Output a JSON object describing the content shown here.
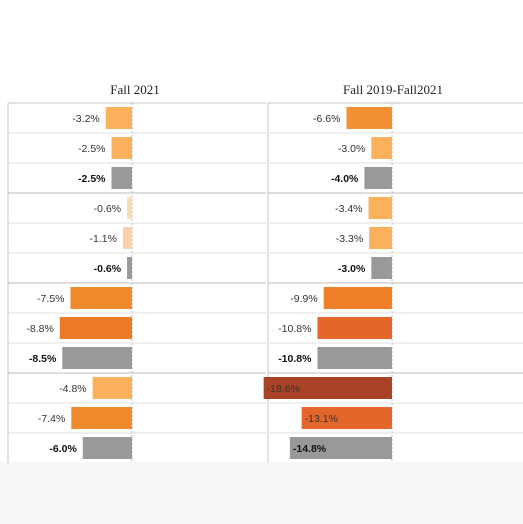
{
  "chart_data": [
    {
      "type": "bar",
      "orientation": "horizontal",
      "title": "Fall 2021",
      "values": [
        -3.2,
        -2.5,
        -2.5,
        -0.6,
        -1.1,
        -0.6,
        -7.5,
        -8.8,
        -8.5,
        -4.8,
        -7.4,
        -6.0
      ],
      "labels": [
        "-3.2%",
        "-2.5%",
        "-2.5%",
        "-0.6%",
        "-1.1%",
        "-0.6%",
        "-7.5%",
        "-8.8%",
        "-8.5%",
        "-4.8%",
        "-7.4%",
        "-6.0%"
      ],
      "total_row": [
        false,
        false,
        true,
        false,
        false,
        true,
        false,
        false,
        true,
        false,
        false,
        true
      ],
      "colors": [
        "#fbb15b",
        "#fbb15b",
        "#999999",
        "#f8dcb8",
        "#f9d1a8",
        "#999999",
        "#f08a2c",
        "#ee7a27",
        "#999999",
        "#fbb15b",
        "#f08a2c",
        "#999999"
      ],
      "groups": 4
    },
    {
      "type": "bar",
      "orientation": "horizontal",
      "title": "Fall 2019-Fall2021",
      "values": [
        -6.6,
        -3.0,
        -4.0,
        -3.4,
        -3.3,
        -3.0,
        -9.9,
        -10.8,
        -10.8,
        -18.6,
        -13.1,
        -14.8
      ],
      "labels": [
        "-6.6%",
        "-3.0%",
        "-4.0%",
        "-3.4%",
        "-3.3%",
        "-3.0%",
        "-9.9%",
        "-10.8%",
        "-10.8%",
        "-18.6%",
        "-13.1%",
        "-14.8%"
      ],
      "total_row": [
        false,
        false,
        true,
        false,
        false,
        true,
        false,
        false,
        true,
        false,
        false,
        true
      ],
      "colors": [
        "#f39034",
        "#fbb15b",
        "#999999",
        "#fbb15b",
        "#fbb15b",
        "#999999",
        "#ef7f28",
        "#e3672a",
        "#999999",
        "#a84325",
        "#e3672a",
        "#999999"
      ],
      "groups": 4
    }
  ]
}
